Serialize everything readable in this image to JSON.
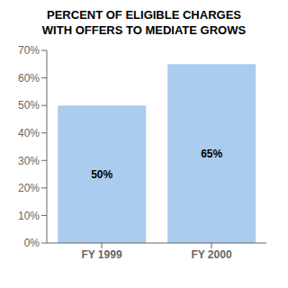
{
  "chart_data": {
    "type": "bar",
    "title": "PERCENT OF ELIGIBLE CHARGES",
    "subtitle": "WITH OFFERS TO MEDIATE GROWS",
    "categories": [
      "FY 1999",
      "FY 2000"
    ],
    "values": [
      50,
      65
    ],
    "value_labels": [
      "50%",
      "65%"
    ],
    "data_labels": true,
    "color": "#aaccee",
    "ylim": [
      0,
      70
    ],
    "yticks": [
      {
        "value": 0,
        "label": "0%"
      },
      {
        "value": 10,
        "label": "10%"
      },
      {
        "value": 20,
        "label": "20%"
      },
      {
        "value": 30,
        "label": "30%"
      },
      {
        "value": 40,
        "label": "40%"
      },
      {
        "value": 50,
        "label": "50%"
      },
      {
        "value": 60,
        "label": "60%"
      },
      {
        "value": 70,
        "label": "70%"
      }
    ],
    "grid": false
  }
}
